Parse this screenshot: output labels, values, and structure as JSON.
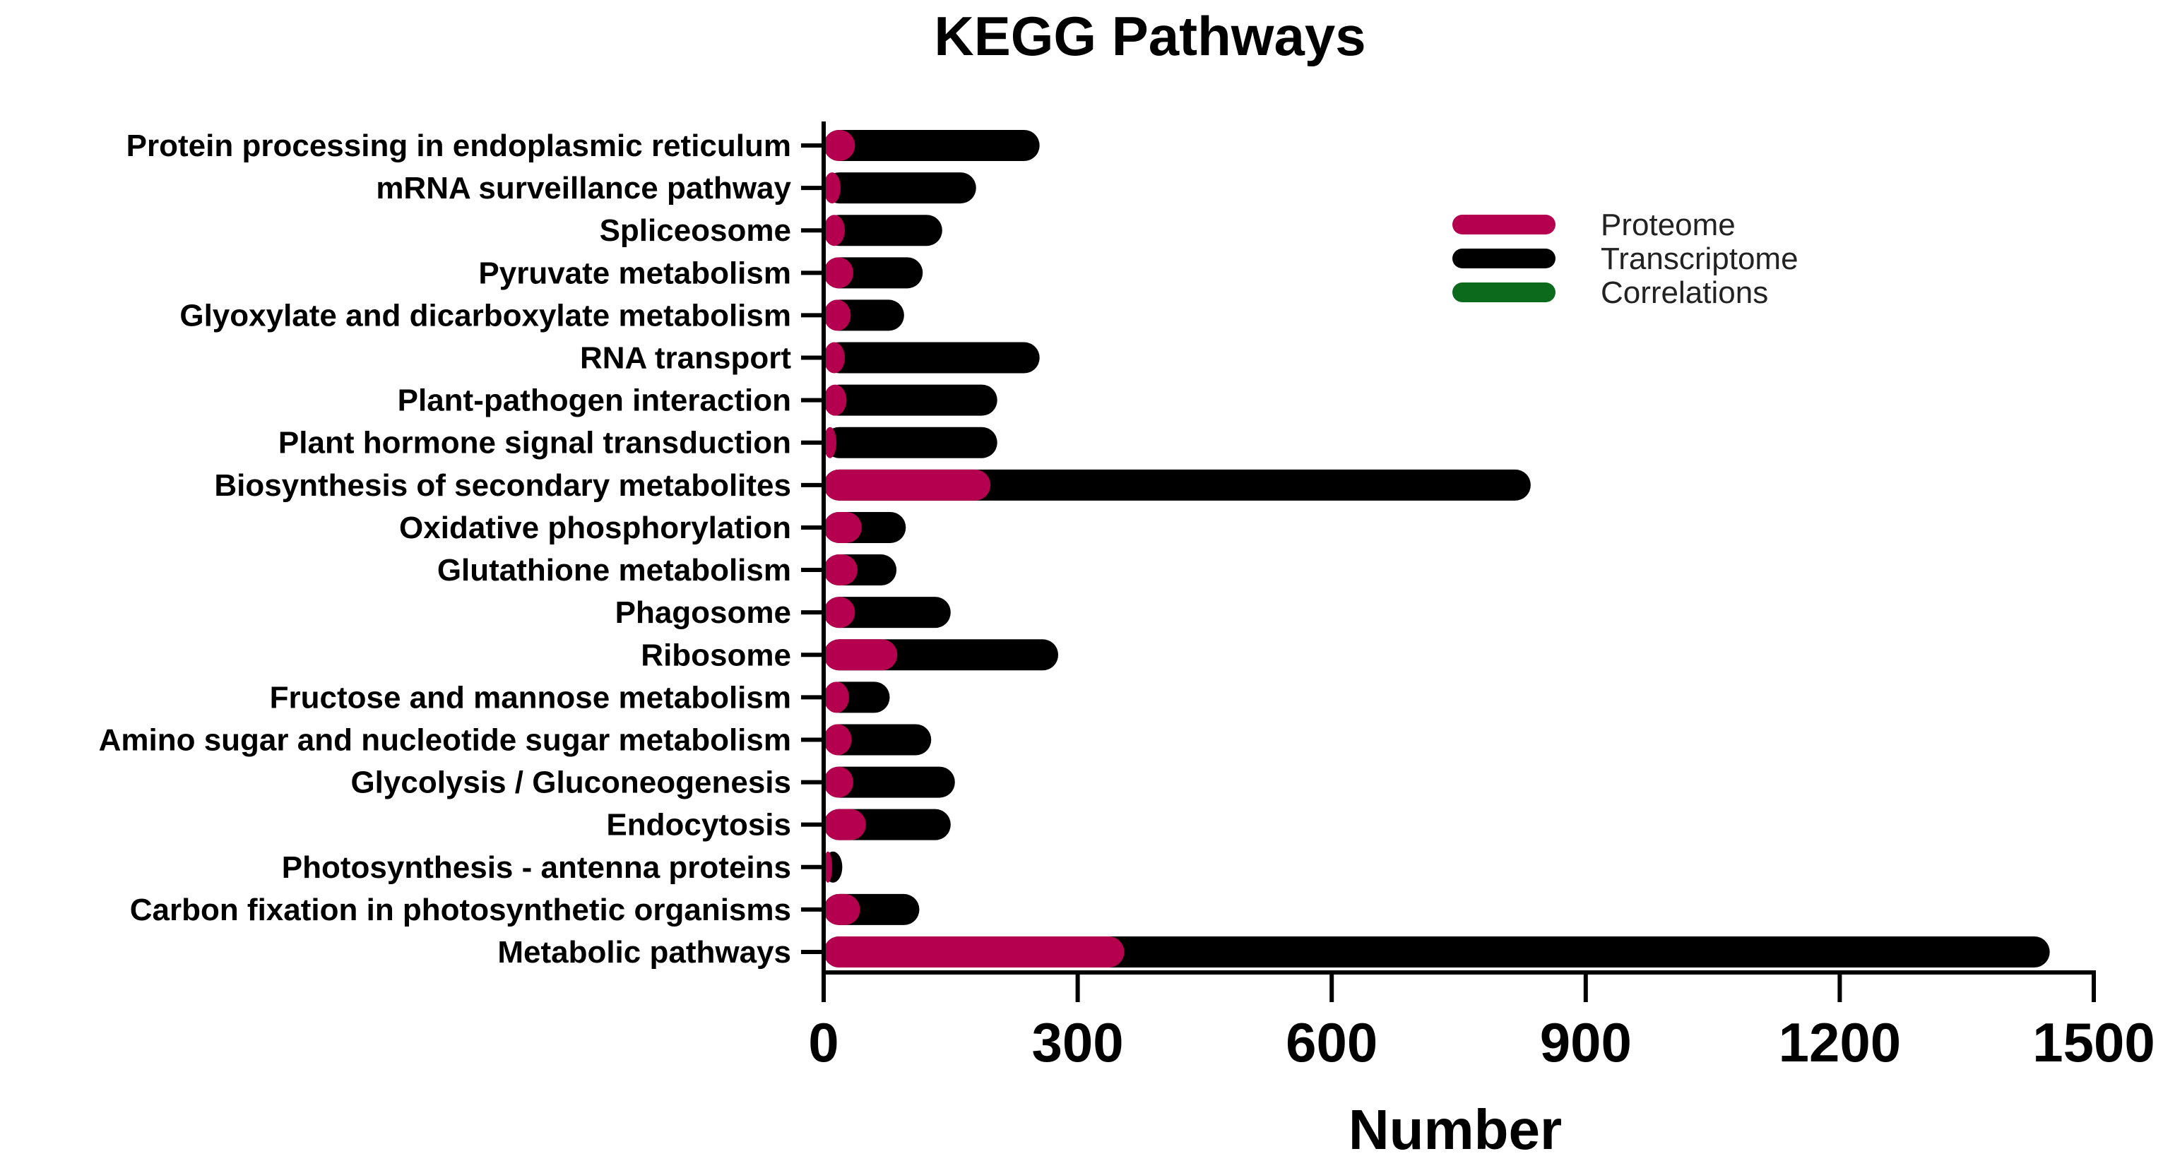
{
  "chart_data": {
    "type": "bar",
    "orientation": "horizontal",
    "stacked": "overlay",
    "title": "KEGG Pathways",
    "xlabel": "Number",
    "ylabel": "",
    "xlim": [
      0,
      1500
    ],
    "xticks": [
      0,
      300,
      600,
      900,
      1200,
      1500
    ],
    "xtick_labels": [
      "0",
      "300",
      "600",
      "900",
      "1200",
      "1500"
    ],
    "categories": [
      "Protein processing in endoplasmic reticulum",
      "mRNA surveillance pathway",
      "Spliceosome",
      "Pyruvate metabolism",
      "Glyoxylate and dicarboxylate metabolism",
      "RNA transport",
      "Plant-pathogen interaction",
      "Plant hormone signal transduction",
      "Biosynthesis of secondary metabolites",
      "Oxidative phosphorylation",
      "Glutathione metabolism",
      "Phagosome",
      "Ribosome",
      "Fructose and mannose metabolism",
      "Amino sugar and nucleotide sugar metabolism",
      "Glycolysis / Gluconeogenesis",
      "Endocytosis",
      "Photosynthesis - antenna proteins",
      "Carbon fixation in photosynthetic organisms",
      "Metabolic pathways"
    ],
    "series": [
      {
        "name": "Transcriptome",
        "color": "#000000",
        "values": [
          255,
          180,
          140,
          117,
          95,
          255,
          205,
          205,
          835,
          97,
          86,
          150,
          277,
          78,
          127,
          155,
          150,
          22,
          113,
          1448
        ]
      },
      {
        "name": "Proteome",
        "color": "#B5004F",
        "values": [
          37,
          20,
          25,
          35,
          32,
          25,
          27,
          15,
          197,
          45,
          40,
          37,
          87,
          30,
          33,
          35,
          50,
          10,
          43,
          355
        ]
      },
      {
        "name": "Correlations",
        "color": "#0B6A1C",
        "values": [
          0,
          0,
          0,
          0,
          0,
          0,
          0,
          0,
          0,
          0,
          0,
          0,
          0,
          0,
          0,
          0,
          0,
          0,
          0,
          0
        ]
      }
    ],
    "legend": {
      "position": "top-right",
      "entries": [
        "Proteome",
        "Transcriptome",
        "Correlations"
      ]
    },
    "grid": false
  }
}
